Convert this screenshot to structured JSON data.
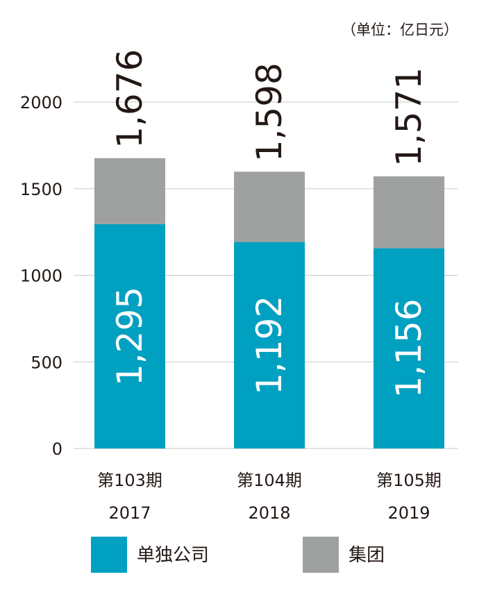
{
  "chart_data": {
    "type": "bar",
    "stacked": true,
    "unit": "（单位：亿日元）",
    "ylim": [
      0,
      2000
    ],
    "yticks": [
      "0",
      "500",
      "1000",
      "1500",
      "2000"
    ],
    "categories": [
      {
        "period": "第103期",
        "year": "2017"
      },
      {
        "period": "第104期",
        "year": "2018"
      },
      {
        "period": "第105期",
        "year": "2019"
      }
    ],
    "series": [
      {
        "name": "单独公司",
        "color": "#00a0c1",
        "values": [
          1295,
          1192,
          1156
        ],
        "labels": [
          "1,295",
          "1,192",
          "1,156"
        ]
      },
      {
        "name": "集团",
        "color": "#9fa0a0",
        "values": [
          381,
          406,
          415
        ]
      }
    ],
    "totals": [
      1676,
      1598,
      1571
    ],
    "total_labels": [
      "1,676",
      "1,598",
      "1,571"
    ],
    "grid": true,
    "legend": "bottom"
  }
}
